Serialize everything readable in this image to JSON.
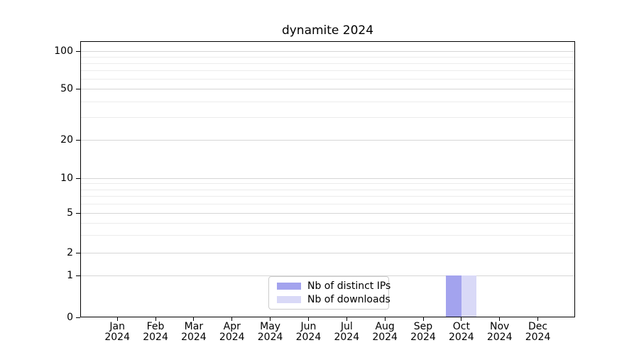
{
  "chart_data": {
    "type": "bar",
    "title": "dynamite 2024",
    "categories": [
      "Jan",
      "Feb",
      "Mar",
      "Apr",
      "May",
      "Jun",
      "Jul",
      "Aug",
      "Sep",
      "Oct",
      "Nov",
      "Dec"
    ],
    "category_year": "2024",
    "series": [
      {
        "name": "Nb of distinct IPs",
        "color": "#a3a3ee",
        "values": [
          0,
          0,
          0,
          0,
          0,
          0,
          0,
          0,
          0,
          1,
          0,
          0
        ]
      },
      {
        "name": "Nb of downloads",
        "color": "#d9d9f7",
        "values": [
          0,
          0,
          0,
          0,
          0,
          0,
          0,
          0,
          0,
          1,
          0,
          0
        ]
      }
    ],
    "y_axis": {
      "tick_labels": [
        "100",
        "50",
        "20",
        "10",
        "5",
        "2",
        "1",
        "0"
      ],
      "tick_values": [
        100,
        50,
        20,
        10,
        5,
        2,
        1,
        0
      ],
      "scale": "log-with-zero",
      "range_top": 120
    },
    "grid": {
      "horizontal": true,
      "vertical": false,
      "minor_values": [
        90,
        80,
        70,
        60,
        40,
        30,
        9,
        8,
        7,
        6,
        4,
        3
      ]
    },
    "legend": {
      "position": "lower-center-inside",
      "entries": [
        "Nb of distinct IPs",
        "Nb of downloads"
      ]
    },
    "colors": {
      "major_grid": "#d6d6d6",
      "minor_grid": "#ececec",
      "spine": "#000000",
      "legend_border": "#cccccc"
    }
  }
}
